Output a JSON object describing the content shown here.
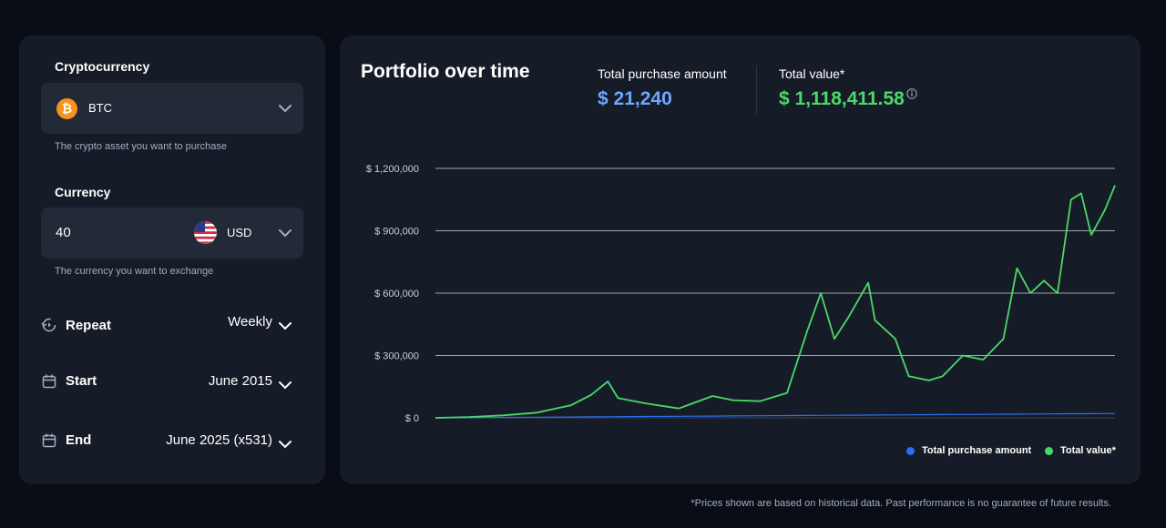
{
  "crypto": {
    "title": "Cryptocurrency",
    "selected": "BTC",
    "icon": "bitcoin-icon",
    "helper": "The crypto asset you want to purchase"
  },
  "currency": {
    "title": "Currency",
    "amount": "40",
    "selected": "USD",
    "flag": "us-flag-icon",
    "helper": "The currency you want to exchange"
  },
  "schedule": {
    "repeat": {
      "label": "Repeat",
      "value": "Weekly",
      "icon": "repeat-icon"
    },
    "start": {
      "label": "Start",
      "value": "June 2015",
      "icon": "calendar-icon"
    },
    "end": {
      "label": "End",
      "value": "June 2025 (x531)",
      "icon": "calendar-icon"
    }
  },
  "chart_panel": {
    "title": "Portfolio over time",
    "purchase_label": "Total purchase amount",
    "purchase_value": "$ 21,240",
    "total_label": "Total value*",
    "total_value": "$ 1,118,411.58"
  },
  "colors": {
    "purchase": "#6fa6ff",
    "total": "#4bd869",
    "purchase_line": "#2c6ef2",
    "accent_btc": "#f7931a"
  },
  "chart_data": {
    "type": "line",
    "title": "",
    "xlabel": "",
    "ylabel": "",
    "ylim": [
      0,
      1200000
    ],
    "yticks": [
      0,
      300000,
      600000,
      900000,
      1200000
    ],
    "ytick_labels": [
      "$ 0",
      "$ 300,000",
      "$ 600,000",
      "$ 900,000",
      "$ 1,200,000"
    ],
    "grid": true,
    "legend_position": "bottom-right",
    "x": [
      2015.4,
      2015.9,
      2016.4,
      2016.9,
      2017.4,
      2017.7,
      2017.95,
      2018.1,
      2018.5,
      2019.0,
      2019.5,
      2019.8,
      2020.2,
      2020.6,
      2020.9,
      2021.1,
      2021.3,
      2021.5,
      2021.8,
      2021.9,
      2022.2,
      2022.4,
      2022.7,
      2022.9,
      2023.2,
      2023.5,
      2023.8,
      2024.0,
      2024.2,
      2024.4,
      2024.6,
      2024.8,
      2024.95,
      2025.1,
      2025.3,
      2025.45
    ],
    "series": [
      {
        "name": "Total purchase amount",
        "values": [
          0,
          1040,
          2080,
          3120,
          4160,
          4780,
          5300,
          5620,
          6450,
          7490,
          8530,
          9150,
          9980,
          10820,
          11440,
          11860,
          12280,
          12690,
          13320,
          13520,
          14150,
          14560,
          15190,
          15600,
          16230,
          16850,
          17480,
          17890,
          18310,
          18720,
          19140,
          19550,
          19860,
          20180,
          20600,
          21240
        ]
      },
      {
        "name": "Total value*",
        "values": [
          0,
          4000,
          12000,
          25000,
          60000,
          110000,
          175000,
          95000,
          70000,
          45000,
          105000,
          85000,
          80000,
          120000,
          420000,
          600000,
          380000,
          480000,
          650000,
          470000,
          380000,
          200000,
          180000,
          200000,
          300000,
          280000,
          380000,
          720000,
          600000,
          660000,
          600000,
          1050000,
          1080000,
          880000,
          1000000,
          1118411
        ]
      }
    ]
  },
  "footnote": "*Prices shown are based on historical data. Past performance is no guarantee of future results."
}
